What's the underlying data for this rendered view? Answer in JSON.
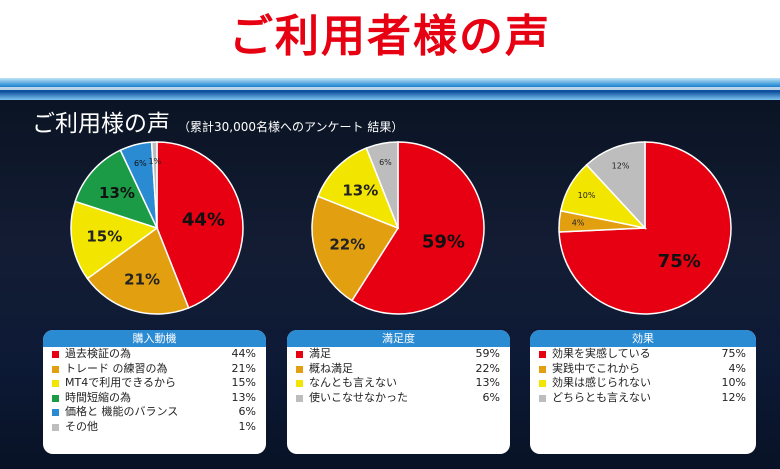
{
  "banner": {
    "title": "ご利用者様の声"
  },
  "subtitle": {
    "main": "ご利用様の声",
    "note": "（累計30,000名様へのアンケート 結果）"
  },
  "colors": {
    "red": "#e60012",
    "orange": "#e2a011",
    "yellow": "#f2e600",
    "green": "#1b9b46",
    "blue": "#2a8ad2",
    "gray": "#bdbdbd"
  },
  "chart_data": [
    {
      "type": "pie",
      "title": "購入動機",
      "slices": [
        {
          "label": "過去検証の為",
          "value": 44,
          "display": "44%",
          "color": "#e60012"
        },
        {
          "label": "トレード の練習の為",
          "value": 21,
          "display": "21%",
          "color": "#e2a011"
        },
        {
          "label": "MT4で利用できるから",
          "value": 15,
          "display": "15%",
          "color": "#f2e600"
        },
        {
          "label": "時間短縮の為",
          "value": 13,
          "display": "13%",
          "color": "#1b9b46"
        },
        {
          "label": "価格と 機能のバランス",
          "value": 6,
          "display": "6%",
          "color": "#2a8ad2"
        },
        {
          "label": "その他",
          "value": 1,
          "display": "1%",
          "color": "#bdbdbd"
        }
      ]
    },
    {
      "type": "pie",
      "title": "満足度",
      "slices": [
        {
          "label": "満足",
          "value": 59,
          "display": "59%",
          "color": "#e60012"
        },
        {
          "label": "概ね満足",
          "value": 22,
          "display": "22%",
          "color": "#e2a011"
        },
        {
          "label": "なんとも言えない",
          "value": 13,
          "display": "13%",
          "color": "#f2e600"
        },
        {
          "label": "使いこなせなかった",
          "value": 6,
          "display": "6%",
          "color": "#bdbdbd"
        }
      ]
    },
    {
      "type": "pie",
      "title": "効果",
      "slices": [
        {
          "label": "効果を実感している",
          "value": 75,
          "display": "75%",
          "color": "#e60012"
        },
        {
          "label": "実践中でこれから",
          "value": 4,
          "display": "4%",
          "color": "#e2a011"
        },
        {
          "label": "効果は感じられない",
          "value": 10,
          "display": "10%",
          "color": "#f2e600"
        },
        {
          "label": "どちらとも言えない",
          "value": 12,
          "display": "12%",
          "color": "#bdbdbd"
        }
      ]
    }
  ]
}
